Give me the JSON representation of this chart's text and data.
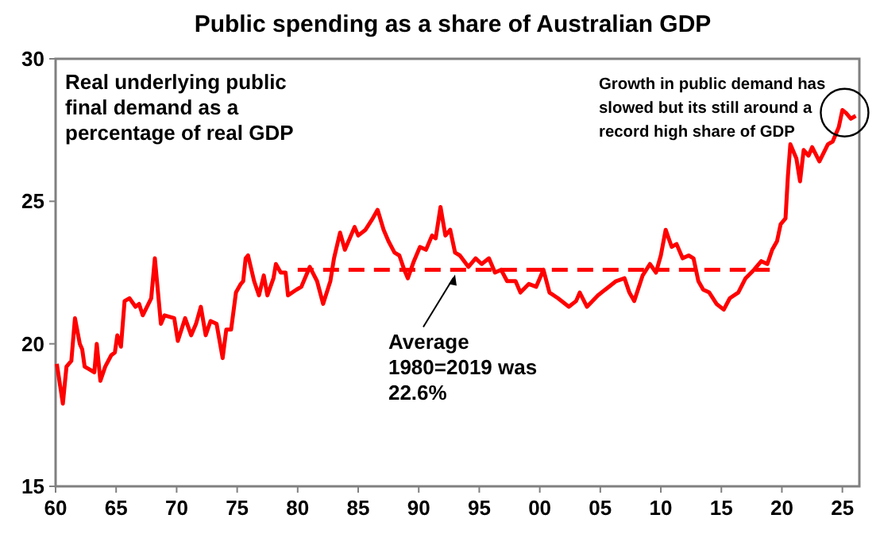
{
  "chart_data": {
    "type": "line",
    "title": "Public spending as a share of Australian GDP",
    "xlim": [
      1960,
      2026.4
    ],
    "ylim": [
      15,
      30
    ],
    "xticks": [
      {
        "value": 1960,
        "label": "60"
      },
      {
        "value": 1965,
        "label": "65"
      },
      {
        "value": 1970,
        "label": "70"
      },
      {
        "value": 1975,
        "label": "75"
      },
      {
        "value": 1980,
        "label": "80"
      },
      {
        "value": 1985,
        "label": "85"
      },
      {
        "value": 1990,
        "label": "90"
      },
      {
        "value": 1995,
        "label": "95"
      },
      {
        "value": 2000,
        "label": "00"
      },
      {
        "value": 2005,
        "label": "05"
      },
      {
        "value": 2010,
        "label": "10"
      },
      {
        "value": 2015,
        "label": "15"
      },
      {
        "value": 2020,
        "label": "20"
      },
      {
        "value": 2025,
        "label": "25"
      }
    ],
    "yticks": [
      15,
      20,
      25,
      30
    ],
    "grid": false,
    "series": [
      {
        "color": "#ff0000",
        "x": [
          1960.1,
          1960.6,
          1960.9,
          1961.3,
          1961.6,
          1962.0,
          1962.2,
          1962.4,
          1962.8,
          1963.2,
          1963.4,
          1963.7,
          1964.1,
          1964.6,
          1964.9,
          1965.1,
          1965.4,
          1965.7,
          1966.1,
          1966.6,
          1966.9,
          1967.2,
          1967.9,
          1968.2,
          1968.7,
          1969.0,
          1969.8,
          1970.1,
          1970.7,
          1971.2,
          1971.6,
          1972.0,
          1972.4,
          1972.8,
          1973.3,
          1973.8,
          1974.1,
          1974.5,
          1974.9,
          1975.3,
          1975.5,
          1975.7,
          1975.9,
          1976.4,
          1976.8,
          1977.2,
          1977.5,
          1978.0,
          1978.2,
          1978.6,
          1979.0,
          1979.2,
          1979.9,
          1980.3,
          1981.0,
          1981.6,
          1982.1,
          1982.7,
          1983.0,
          1983.5,
          1983.9,
          1984.3,
          1984.7,
          1985.0,
          1985.6,
          1986.2,
          1986.6,
          1987.1,
          1987.5,
          1988.0,
          1988.4,
          1988.8,
          1989.1,
          1989.6,
          1990.1,
          1990.6,
          1991.1,
          1991.4,
          1991.8,
          1992.2,
          1992.6,
          1993.0,
          1993.4,
          1994.1,
          1994.7,
          1995.2,
          1995.8,
          1996.3,
          1996.8,
          1997.3,
          1998.0,
          1998.4,
          1999.1,
          1999.7,
          2000.3,
          2000.8,
          2001.5,
          2002.4,
          2003.0,
          2003.3,
          2003.9,
          2004.8,
          2005.7,
          2006.3,
          2007.0,
          2007.4,
          2007.8,
          2008.5,
          2009.1,
          2009.6,
          2010.0,
          2010.4,
          2010.9,
          2011.3,
          2011.8,
          2012.3,
          2012.7,
          2013.1,
          2013.5,
          2014.0,
          2014.6,
          2015.2,
          2015.7,
          2016.4,
          2017.0,
          2017.7,
          2018.3,
          2018.8,
          2019.2,
          2019.6,
          2019.9,
          2020.3,
          2020.5,
          2020.7,
          2021.2,
          2021.5,
          2021.8,
          2022.2,
          2022.5,
          2023.1,
          2023.8,
          2024.2,
          2024.7,
          2025.0,
          2025.3,
          2025.7,
          2026.1
        ],
        "values": [
          19.3,
          17.9,
          19.2,
          19.4,
          20.9,
          20.0,
          19.8,
          19.2,
          19.1,
          19.0,
          20.0,
          18.7,
          19.2,
          19.6,
          19.7,
          20.3,
          19.9,
          21.5,
          21.6,
          21.3,
          21.4,
          21.0,
          21.6,
          23.0,
          20.7,
          21.0,
          20.9,
          20.1,
          20.9,
          20.3,
          20.7,
          21.3,
          20.3,
          20.8,
          20.7,
          19.5,
          20.5,
          20.5,
          21.8,
          22.1,
          22.2,
          23.0,
          23.1,
          22.2,
          21.7,
          22.4,
          21.7,
          22.3,
          22.8,
          22.5,
          22.5,
          21.7,
          21.9,
          22.0,
          22.7,
          22.2,
          21.4,
          22.2,
          23.0,
          23.9,
          23.3,
          23.7,
          24.1,
          23.8,
          24.0,
          24.4,
          24.7,
          24.0,
          23.6,
          23.2,
          23.1,
          22.6,
          22.3,
          22.9,
          23.4,
          23.3,
          23.8,
          23.7,
          24.8,
          23.8,
          24.0,
          23.2,
          23.1,
          22.7,
          23.0,
          22.8,
          23.0,
          22.5,
          22.6,
          22.2,
          22.2,
          21.8,
          22.1,
          22.0,
          22.6,
          21.8,
          21.6,
          21.3,
          21.5,
          21.8,
          21.3,
          21.7,
          22.0,
          22.2,
          22.3,
          21.8,
          21.5,
          22.4,
          22.8,
          22.5,
          23.1,
          24.0,
          23.4,
          23.5,
          23.0,
          23.1,
          23.0,
          22.2,
          21.9,
          21.8,
          21.4,
          21.2,
          21.6,
          21.8,
          22.3,
          22.6,
          22.9,
          22.8,
          23.3,
          23.6,
          24.2,
          24.4,
          25.9,
          27.0,
          26.5,
          25.7,
          26.8,
          26.6,
          26.9,
          26.4,
          27.0,
          27.1,
          27.6,
          28.2,
          28.1,
          27.9,
          28.0
        ]
      },
      {
        "type": "line",
        "line_style": "dashed",
        "color": "#ff0000",
        "x": [
          1980,
          2019
        ],
        "values": [
          22.6,
          22.6
        ]
      }
    ],
    "annotations": [
      "Real underlying public\nfinal demand as a\npercentage of real GDP",
      "Growth in public demand has\nslowed but its still around a\nrecord high share of GDP",
      {
        "text": "Average\n1980=2019 was\n22.6%",
        "x": 1993,
        "y": 22.6
      }
    ]
  }
}
